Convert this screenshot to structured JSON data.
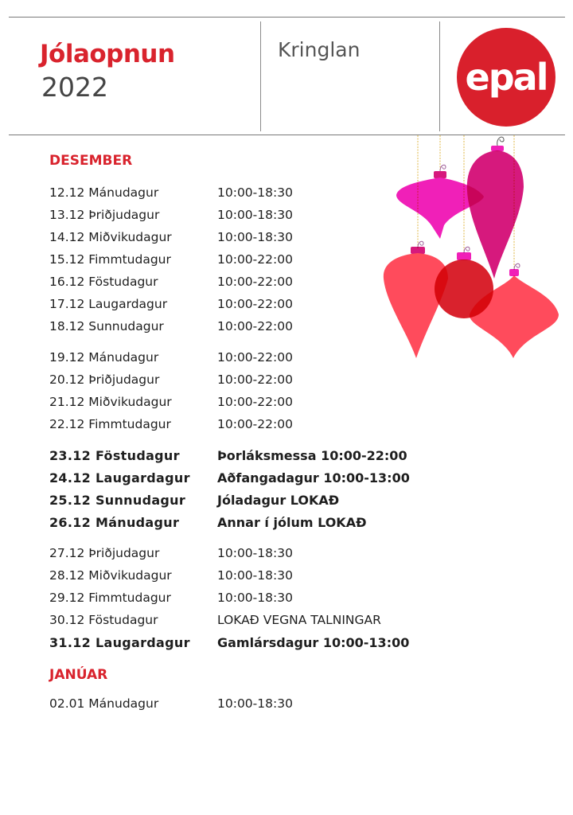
{
  "header": {
    "title": "Jólaopnun",
    "year": "2022",
    "location": "Kringlan",
    "logo_text": "epal"
  },
  "colors": {
    "accent": "#d9232d",
    "logo": "#d9202c",
    "ornament_magenta": "#f020b8",
    "ornament_berry": "#d6197d",
    "ornament_coral": "#ff4b5c",
    "ornament_red": "#d9222d",
    "string_gold": "#e0b84a"
  },
  "sections": [
    {
      "title": "DESEMBER",
      "groups": [
        [
          {
            "day": "12.12 Mánudagur",
            "hours": "10:00-18:30"
          },
          {
            "day": "13.12 Þriðjudagur",
            "hours": "10:00-18:30"
          },
          {
            "day": "14.12 Miðvikudagur",
            "hours": "10:00-18:30"
          },
          {
            "day": "15.12 Fimmtudagur",
            "hours": "10:00-22:00"
          },
          {
            "day": "16.12 Föstudagur",
            "hours": "10:00-22:00"
          },
          {
            "day": "17.12 Laugardagur",
            "hours": "10:00-22:00"
          },
          {
            "day": "18.12 Sunnudagur",
            "hours": "10:00-22:00"
          }
        ],
        [
          {
            "day": "19.12 Mánudagur",
            "hours": "10:00-22:00"
          },
          {
            "day": "20.12 Þriðjudagur",
            "hours": "10:00-22:00"
          },
          {
            "day": "21.12 Miðvikudagur",
            "hours": "10:00-22:00"
          },
          {
            "day": "22.12 Fimmtudagur",
            "hours": "10:00-22:00"
          }
        ],
        [
          {
            "day": "23.12 Föstudagur",
            "hours": "Þorláksmessa 10:00-22:00",
            "bold": true
          },
          {
            "day": "24.12 Laugardagur",
            "hours": "Aðfangadagur 10:00-13:00",
            "bold": true
          },
          {
            "day": "25.12 Sunnudagur",
            "hours": "Jóladagur LOKAÐ",
            "bold": true
          },
          {
            "day": "26.12 Mánudagur",
            "hours": "Annar í jólum LOKAÐ",
            "bold": true
          }
        ],
        [
          {
            "day": "27.12 Þriðjudagur",
            "hours": "10:00-18:30"
          },
          {
            "day": "28.12 Miðvikudagur",
            "hours": "10:00-18:30"
          },
          {
            "day": "29.12 Fimmtudagur",
            "hours": "10:00-18:30"
          },
          {
            "day": "30.12 Föstudagur",
            "hours": "LOKAÐ VEGNA TALNINGAR"
          },
          {
            "day": "31.12 Laugardagur",
            "hours": "Gamlársdagur 10:00-13:00",
            "bold": true
          }
        ]
      ]
    },
    {
      "title": "JANÚAR",
      "groups": [
        [
          {
            "day": "02.01 Mánudagur",
            "hours": "10:00-18:30"
          }
        ]
      ]
    }
  ]
}
